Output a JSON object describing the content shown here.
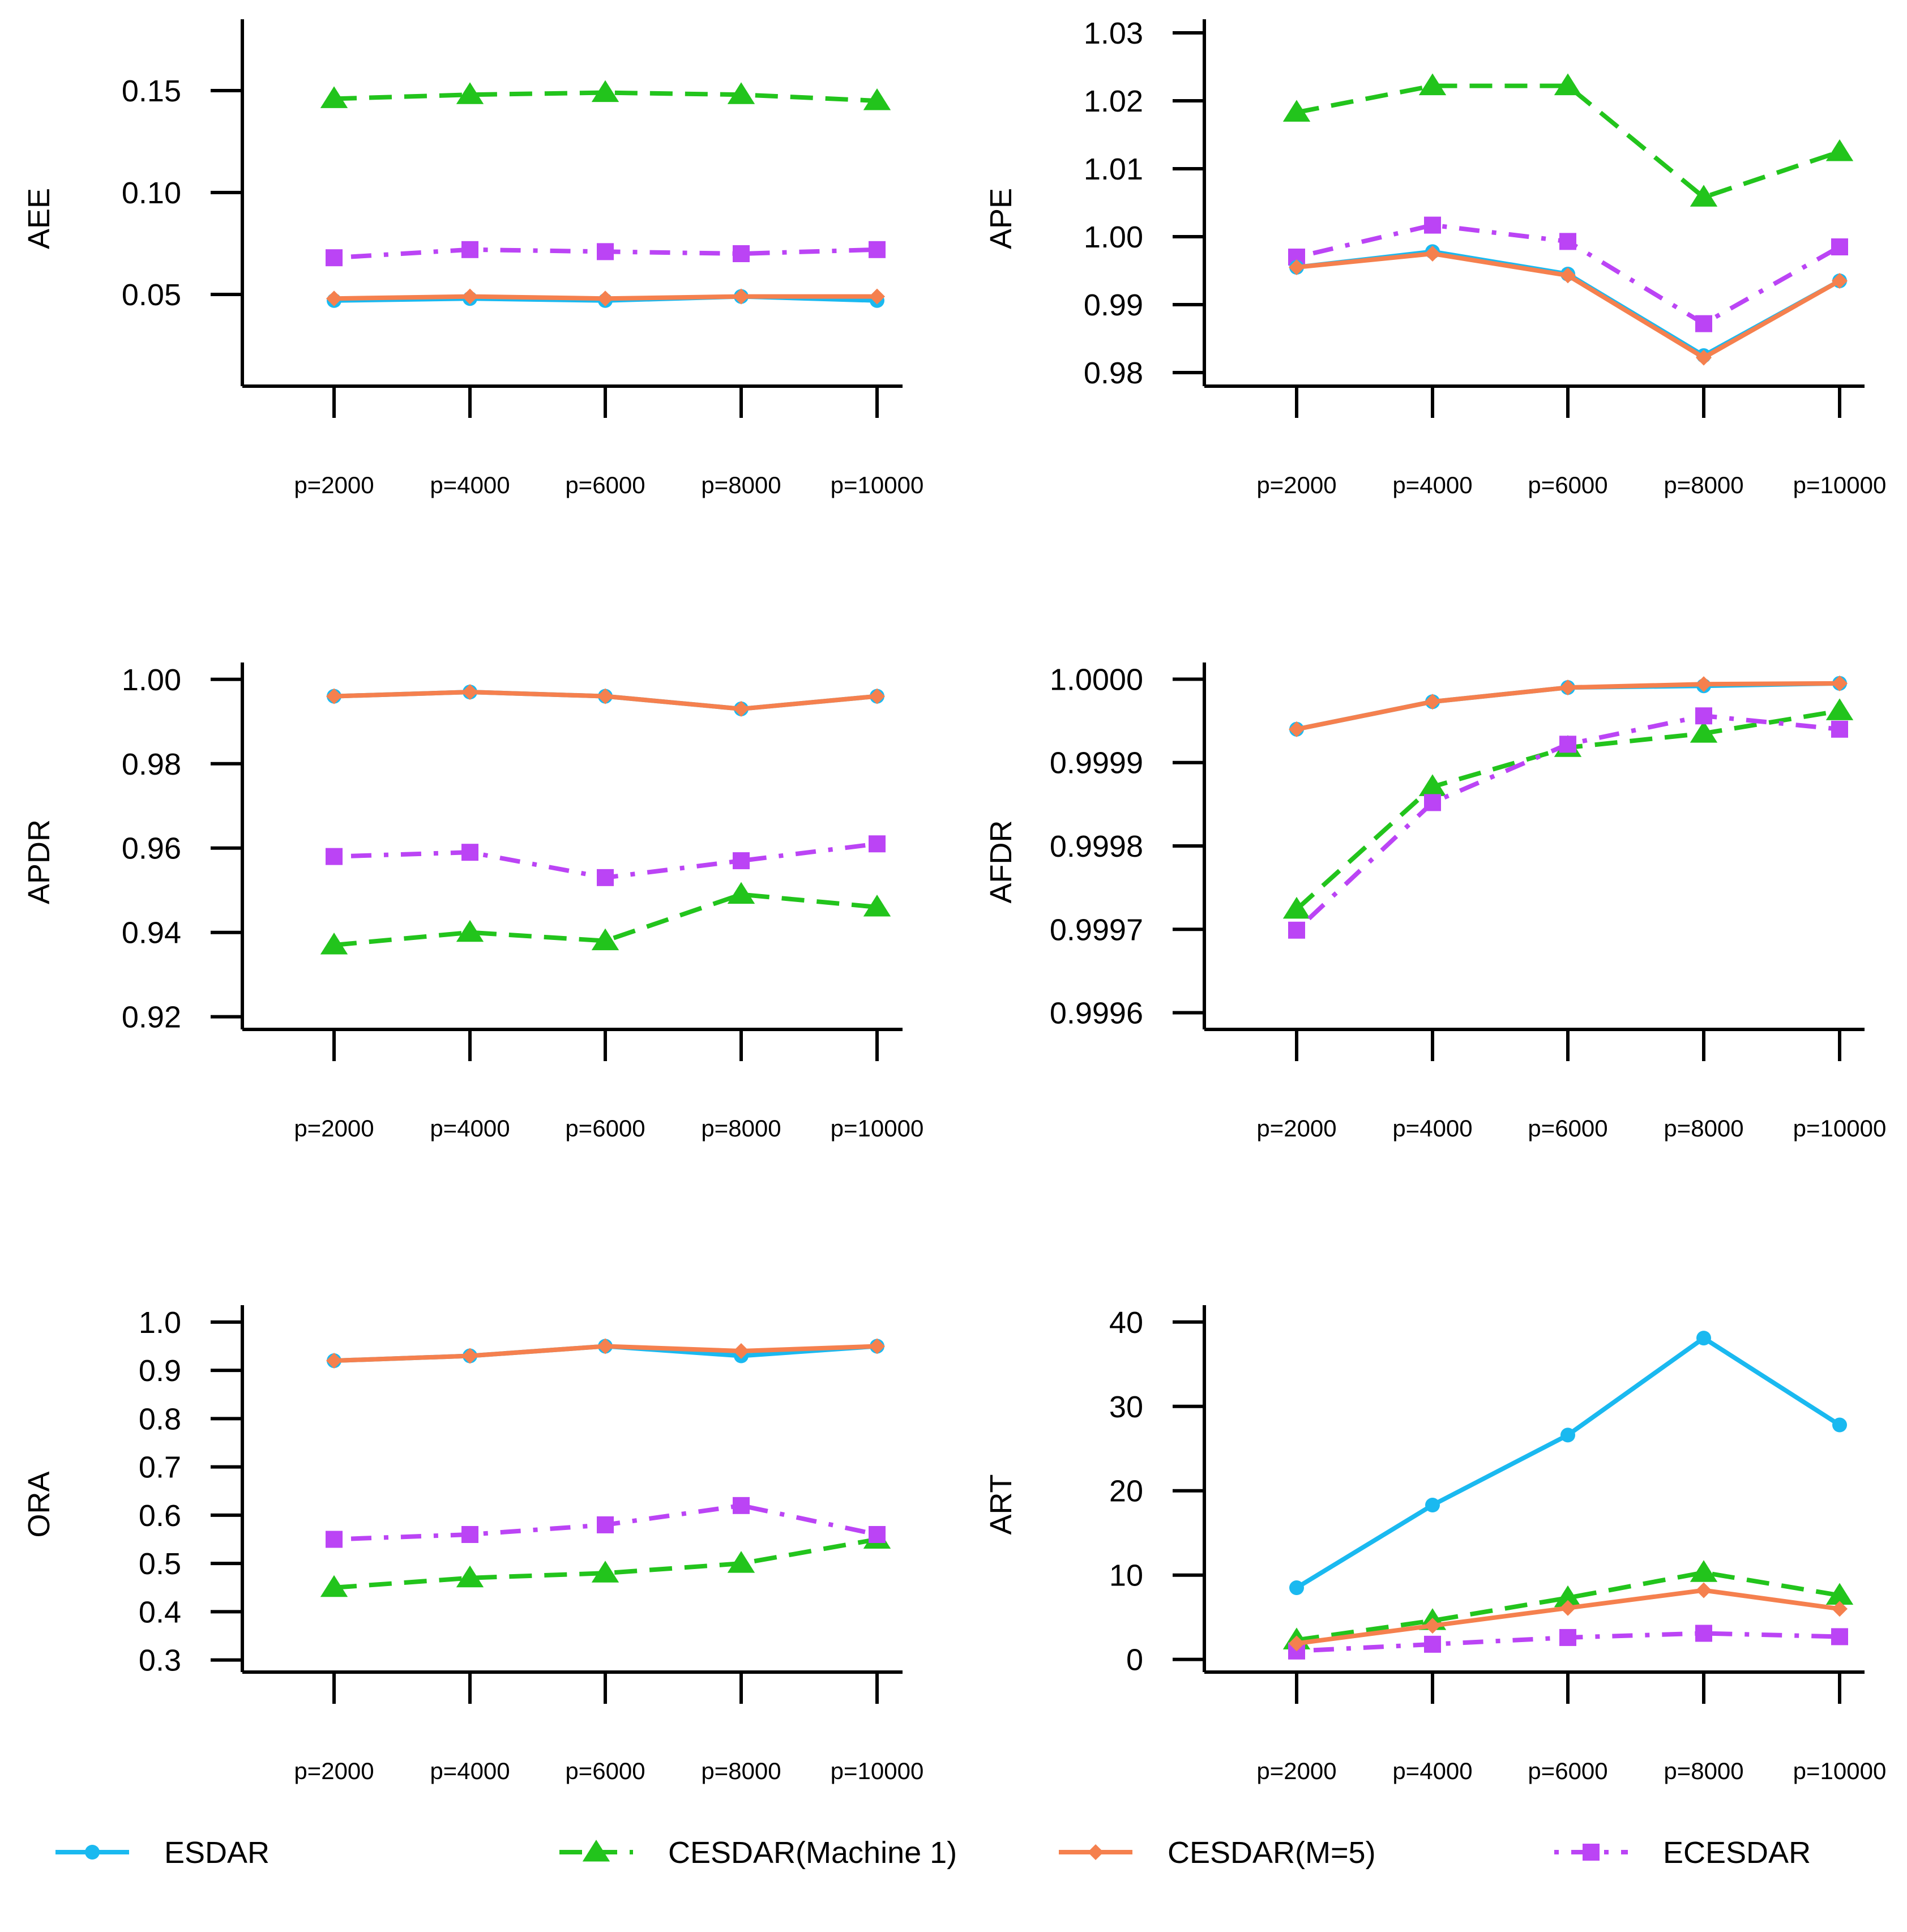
{
  "legend": [
    {
      "name": "ESDAR",
      "color": "#1ab9f0",
      "marker": "circle",
      "dash": "solid"
    },
    {
      "name": "CESDAR(Machine 1)",
      "color": "#22c41c",
      "marker": "triangle",
      "dash": "dashed"
    },
    {
      "name": "CESDAR(M=5)",
      "color": "#f5804e",
      "marker": "diamond",
      "dash": "solid"
    },
    {
      "name": "ECESDAR",
      "color": "#bb44f5",
      "marker": "square",
      "dash": "dotdash"
    }
  ],
  "chart_data": [
    {
      "type": "line",
      "panel": "top-left",
      "ylabel": "AEE",
      "categories": [
        "p=2000",
        "p=4000",
        "p=6000",
        "p=8000",
        "p=10000"
      ],
      "ylim": [
        0.005,
        0.185
      ],
      "yticks": [
        0.05,
        0.1,
        0.15
      ],
      "ytick_labels": [
        "0.05",
        "0.10",
        "0.15"
      ],
      "series": [
        {
          "name": "ESDAR",
          "values": [
            0.047,
            0.048,
            0.047,
            0.049,
            0.047
          ]
        },
        {
          "name": "CESDAR(Machine 1)",
          "values": [
            0.146,
            0.148,
            0.149,
            0.148,
            0.145
          ]
        },
        {
          "name": "CESDAR(M=5)",
          "values": [
            0.048,
            0.049,
            0.048,
            0.049,
            0.049
          ]
        },
        {
          "name": "ECESDAR",
          "values": [
            0.068,
            0.072,
            0.071,
            0.07,
            0.072
          ]
        }
      ]
    },
    {
      "type": "line",
      "panel": "top-right",
      "ylabel": "APE",
      "categories": [
        "p=2000",
        "p=4000",
        "p=6000",
        "p=8000",
        "p=10000"
      ],
      "ylim": [
        0.978,
        1.032
      ],
      "yticks": [
        0.98,
        0.99,
        1.0,
        1.01,
        1.02,
        1.03
      ],
      "ytick_labels": [
        "0.98",
        "0.99",
        "1.00",
        "1.01",
        "1.02",
        "1.03"
      ],
      "series": [
        {
          "name": "ESDAR",
          "values": [
            0.9955,
            0.9978,
            0.9945,
            0.9825,
            0.9935
          ]
        },
        {
          "name": "CESDAR(Machine 1)",
          "values": [
            1.0183,
            1.0222,
            1.0222,
            1.0058,
            1.0125
          ]
        },
        {
          "name": "CESDAR(M=5)",
          "values": [
            0.9955,
            0.9975,
            0.9943,
            0.9822,
            0.9935
          ]
        },
        {
          "name": "ECESDAR",
          "values": [
            0.997,
            1.0017,
            0.9993,
            0.9872,
            0.9985
          ]
        }
      ]
    },
    {
      "type": "line",
      "panel": "middle-left",
      "ylabel": "APDR",
      "categories": [
        "p=2000",
        "p=4000",
        "p=6000",
        "p=8000",
        "p=10000"
      ],
      "ylim": [
        0.917,
        1.004
      ],
      "yticks": [
        0.92,
        0.94,
        0.96,
        0.98,
        1.0
      ],
      "ytick_labels": [
        "0.92",
        "0.94",
        "0.96",
        "0.98",
        "1.00"
      ],
      "series": [
        {
          "name": "ESDAR",
          "values": [
            0.996,
            0.997,
            0.996,
            0.993,
            0.996
          ]
        },
        {
          "name": "CESDAR(Machine 1)",
          "values": [
            0.937,
            0.94,
            0.938,
            0.949,
            0.946
          ]
        },
        {
          "name": "CESDAR(M=5)",
          "values": [
            0.996,
            0.997,
            0.996,
            0.993,
            0.996
          ]
        },
        {
          "name": "ECESDAR",
          "values": [
            0.958,
            0.959,
            0.953,
            0.957,
            0.961
          ]
        }
      ]
    },
    {
      "type": "line",
      "panel": "middle-right",
      "ylabel": "AFDR",
      "categories": [
        "p=2000",
        "p=4000",
        "p=6000",
        "p=8000",
        "p=10000"
      ],
      "ylim": [
        0.99958,
        1.00002
      ],
      "yticks": [
        0.9996,
        0.9997,
        0.9998,
        0.9999,
        1.0
      ],
      "ytick_labels": [
        "0.9996",
        "0.9997",
        "0.9998",
        "0.9999",
        "1.0000"
      ],
      "series": [
        {
          "name": "ESDAR",
          "values": [
            0.99994,
            0.999973,
            0.99999,
            0.999992,
            0.999995
          ]
        },
        {
          "name": "CESDAR(Machine 1)",
          "values": [
            0.999724,
            0.999871,
            0.999918,
            0.999935,
            0.999962
          ]
        },
        {
          "name": "CESDAR(M=5)",
          "values": [
            0.99994,
            0.999973,
            0.99999,
            0.999994,
            0.999995
          ]
        },
        {
          "name": "ECESDAR",
          "values": [
            0.999699,
            0.999852,
            0.999922,
            0.999956,
            0.99994
          ]
        }
      ]
    },
    {
      "type": "line",
      "panel": "bottom-left",
      "ylabel": "ORA",
      "categories": [
        "p=2000",
        "p=4000",
        "p=6000",
        "p=8000",
        "p=10000"
      ],
      "ylim": [
        0.275,
        1.035
      ],
      "yticks": [
        0.3,
        0.4,
        0.5,
        0.6,
        0.7,
        0.8,
        0.9,
        1.0
      ],
      "ytick_labels": [
        "0.3",
        "0.4",
        "0.5",
        "0.6",
        "0.7",
        "0.8",
        "0.9",
        "1.0"
      ],
      "series": [
        {
          "name": "ESDAR",
          "values": [
            0.92,
            0.93,
            0.95,
            0.93,
            0.95
          ]
        },
        {
          "name": "CESDAR(Machine 1)",
          "values": [
            0.45,
            0.47,
            0.48,
            0.5,
            0.55
          ]
        },
        {
          "name": "CESDAR(M=5)",
          "values": [
            0.92,
            0.93,
            0.95,
            0.94,
            0.95
          ]
        },
        {
          "name": "ECESDAR",
          "values": [
            0.55,
            0.56,
            0.58,
            0.62,
            0.56
          ]
        }
      ]
    },
    {
      "type": "line",
      "panel": "bottom-right",
      "ylabel": "ART",
      "categories": [
        "p=2000",
        "p=4000",
        "p=6000",
        "p=8000",
        "p=10000"
      ],
      "ylim": [
        -1.5,
        42
      ],
      "yticks": [
        0,
        10,
        20,
        30,
        40
      ],
      "ytick_labels": [
        "0",
        "10",
        "20",
        "30",
        "40"
      ],
      "series": [
        {
          "name": "ESDAR",
          "values": [
            8.5,
            18.3,
            26.6,
            38.1,
            27.8
          ]
        },
        {
          "name": "CESDAR(Machine 1)",
          "values": [
            2.3,
            4.6,
            7.3,
            10.3,
            7.6
          ]
        },
        {
          "name": "CESDAR(M=5)",
          "values": [
            1.9,
            4.0,
            6.1,
            8.2,
            6.0
          ]
        },
        {
          "name": "ECESDAR",
          "values": [
            1.0,
            1.8,
            2.6,
            3.1,
            2.7
          ]
        }
      ]
    }
  ]
}
